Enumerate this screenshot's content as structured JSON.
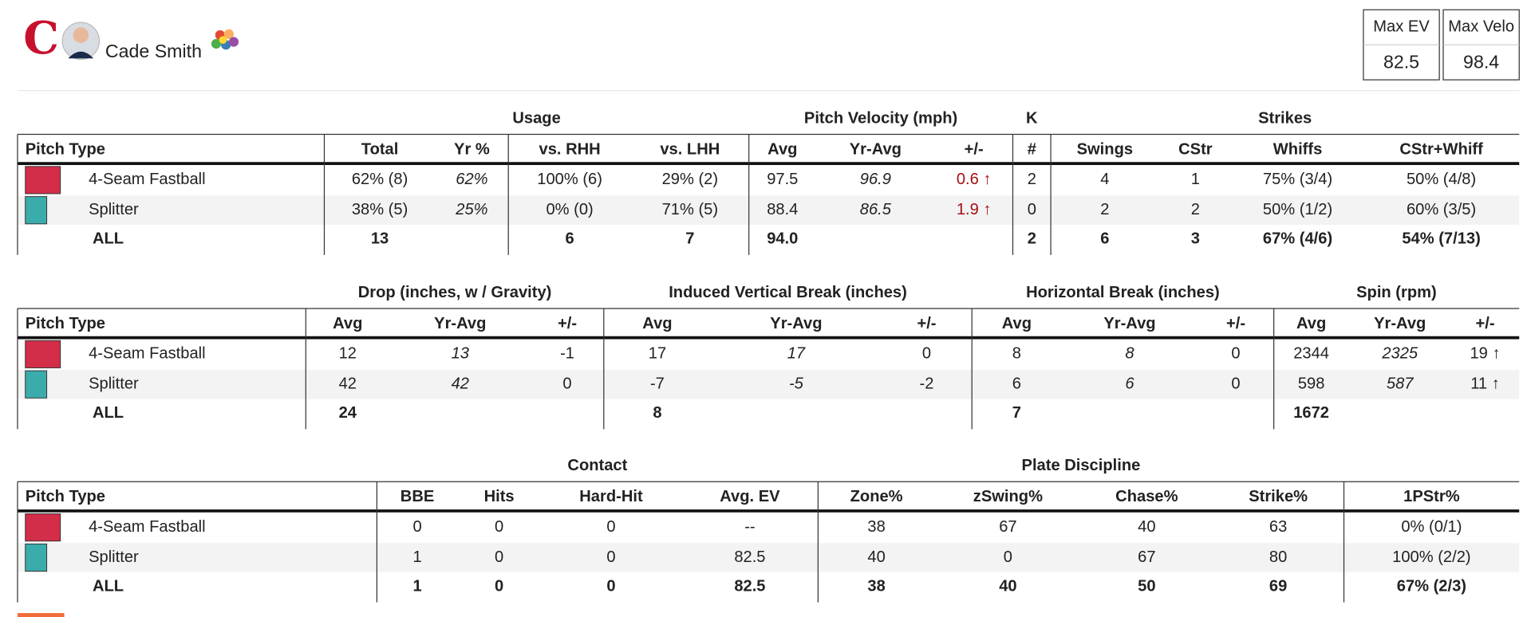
{
  "header": {
    "player": "Cade Smith",
    "stats": [
      {
        "label": "Max EV",
        "value": "82.5"
      },
      {
        "label": "Max Velo",
        "value": "98.4"
      }
    ]
  },
  "tables": [
    {
      "groups": [
        "Usage",
        "Pitch Velocity (mph)",
        "K",
        "Strikes"
      ],
      "columns": [
        "Pitch Type",
        "Total",
        "Yr %",
        "vs. RHH",
        "vs. LHH",
        "Avg",
        "Yr-Avg",
        "+/-",
        "#",
        "Swings",
        "CStr",
        "Whiffs",
        "CStr+Whiff"
      ],
      "rows": [
        {
          "name": "4-Seam Fastball",
          "color": "#d22d49",
          "cells": [
            "62% (8)",
            "62%",
            "100% (6)",
            "29% (2)",
            "97.5",
            "96.9",
            "0.6 ↑",
            "2",
            "4",
            "1",
            "75% (3/4)",
            "50% (4/8)"
          ]
        },
        {
          "name": "Splitter",
          "color": "#3bacac",
          "cells": [
            "38% (5)",
            "25%",
            "0% (0)",
            "71% (5)",
            "88.4",
            "86.5",
            "1.9 ↑",
            "0",
            "2",
            "2",
            "50% (1/2)",
            "60% (3/5)"
          ]
        }
      ],
      "total": {
        "name": "ALL",
        "cells": [
          "13",
          null,
          "6",
          "7",
          "94.0",
          null,
          null,
          "2",
          "6",
          "3",
          "67% (4/6)",
          "54% (7/13)"
        ]
      }
    },
    {
      "groups": [
        "Drop (inches, w / Gravity)",
        "Induced Vertical Break (inches)",
        "Horizontal Break (inches)",
        "Spin (rpm)"
      ],
      "columns": [
        "Pitch Type",
        "Avg",
        "Yr-Avg",
        "+/-",
        "Avg",
        "Yr-Avg",
        "+/-",
        "Avg",
        "Yr-Avg",
        "+/-",
        "Avg",
        "Yr-Avg",
        "+/-"
      ],
      "rows": [
        {
          "name": "4-Seam Fastball",
          "color": "#d22d49",
          "cells": [
            "12",
            "13",
            "-1",
            "17",
            "17",
            "0",
            "8",
            "8",
            "0",
            "2344",
            "2325",
            "19 ↑"
          ]
        },
        {
          "name": "Splitter",
          "color": "#3bacac",
          "cells": [
            "42",
            "42",
            "0",
            "-7",
            "-5",
            "-2",
            "6",
            "6",
            "0",
            "598",
            "587",
            "11 ↑"
          ]
        }
      ],
      "total": {
        "name": "ALL",
        "cells": [
          "24",
          null,
          null,
          "8",
          null,
          null,
          "7",
          null,
          null,
          "1672",
          null,
          null
        ]
      }
    },
    {
      "groups": [
        "Contact",
        "Plate Discipline"
      ],
      "columns": [
        "Pitch Type",
        "BBE",
        "Hits",
        "Hard-Hit",
        "Avg. EV",
        "Zone%",
        "zSwing%",
        "Chase%",
        "Strike%",
        "1PStr%"
      ],
      "rows": [
        {
          "name": "4-Seam Fastball",
          "color": "#d22d49",
          "cells": [
            "0",
            "0",
            "0",
            "--",
            "38",
            "67",
            "40",
            "63",
            "0% (0/1)"
          ]
        },
        {
          "name": "Splitter",
          "color": "#3bacac",
          "cells": [
            "1",
            "0",
            "0",
            "82.5",
            "40",
            "0",
            "67",
            "80",
            "100% (2/2)"
          ]
        }
      ],
      "total": {
        "name": "ALL",
        "cells": [
          "1",
          "0",
          "0",
          "82.5",
          "38",
          "40",
          "50",
          "69",
          "67% (2/3)"
        ]
      }
    }
  ]
}
